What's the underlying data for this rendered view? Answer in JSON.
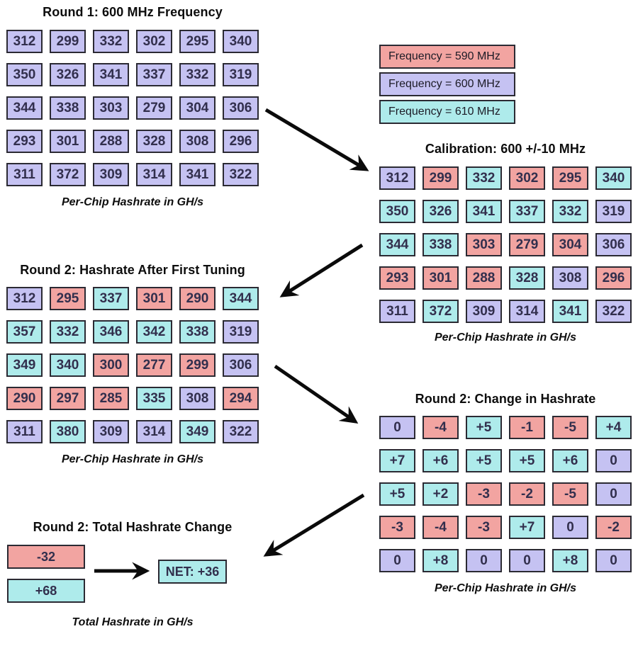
{
  "colors": {
    "background": "#ffffff",
    "cell_border": "#2b2a33",
    "cell_text": "#322f4d",
    "title_text": "#0d0d0d",
    "arrow": "#0b0b0b"
  },
  "frequency_colors": {
    "590": "#f2a4a1",
    "600": "#c5c2f2",
    "610": "#aeebeb"
  },
  "legend": {
    "items": [
      {
        "label": "Frequency = 590 MHz",
        "color_key": "590"
      },
      {
        "label": "Frequency = 600 MHz",
        "color_key": "600"
      },
      {
        "label": "Frequency = 610 MHz",
        "color_key": "610"
      }
    ]
  },
  "sections": {
    "round1": {
      "title": "Round 1: 600 MHz Frequency",
      "caption": "Per-Chip Hashrate in GH/s"
    },
    "calibration": {
      "title": "Calibration: 600 +/-10 MHz",
      "caption": "Per-Chip Hashrate in GH/s"
    },
    "round2": {
      "title": "Round 2: Hashrate After First Tuning",
      "caption": "Per-Chip Hashrate in GH/s"
    },
    "change": {
      "title": "Round 2: Change in Hashrate",
      "caption": "Per-Chip Hashrate in GH/s"
    },
    "total": {
      "title": "Round 2: Total Hashrate Change",
      "caption": "Total Hashrate in GH/s",
      "loss_label": "-32",
      "gain_label": "+68",
      "net_label": "NET: +36"
    }
  },
  "grids": {
    "round1": {
      "values": [
        [
          "312",
          "299",
          "332",
          "302",
          "295",
          "340"
        ],
        [
          "350",
          "326",
          "341",
          "337",
          "332",
          "319"
        ],
        [
          "344",
          "338",
          "303",
          "279",
          "304",
          "306"
        ],
        [
          "293",
          "301",
          "288",
          "328",
          "308",
          "296"
        ],
        [
          "311",
          "372",
          "309",
          "314",
          "341",
          "322"
        ]
      ],
      "colors": [
        [
          "600",
          "600",
          "600",
          "600",
          "600",
          "600"
        ],
        [
          "600",
          "600",
          "600",
          "600",
          "600",
          "600"
        ],
        [
          "600",
          "600",
          "600",
          "600",
          "600",
          "600"
        ],
        [
          "600",
          "600",
          "600",
          "600",
          "600",
          "600"
        ],
        [
          "600",
          "600",
          "600",
          "600",
          "600",
          "600"
        ]
      ]
    },
    "calibration": {
      "values": [
        [
          "312",
          "299",
          "332",
          "302",
          "295",
          "340"
        ],
        [
          "350",
          "326",
          "341",
          "337",
          "332",
          "319"
        ],
        [
          "344",
          "338",
          "303",
          "279",
          "304",
          "306"
        ],
        [
          "293",
          "301",
          "288",
          "328",
          "308",
          "296"
        ],
        [
          "311",
          "372",
          "309",
          "314",
          "341",
          "322"
        ]
      ],
      "colors": [
        [
          "600",
          "590",
          "610",
          "590",
          "590",
          "610"
        ],
        [
          "610",
          "610",
          "610",
          "610",
          "610",
          "600"
        ],
        [
          "610",
          "610",
          "590",
          "590",
          "590",
          "600"
        ],
        [
          "590",
          "590",
          "590",
          "610",
          "600",
          "590"
        ],
        [
          "600",
          "610",
          "600",
          "600",
          "610",
          "600"
        ]
      ]
    },
    "round2": {
      "values": [
        [
          "312",
          "295",
          "337",
          "301",
          "290",
          "344"
        ],
        [
          "357",
          "332",
          "346",
          "342",
          "338",
          "319"
        ],
        [
          "349",
          "340",
          "300",
          "277",
          "299",
          "306"
        ],
        [
          "290",
          "297",
          "285",
          "335",
          "308",
          "294"
        ],
        [
          "311",
          "380",
          "309",
          "314",
          "349",
          "322"
        ]
      ],
      "colors": [
        [
          "600",
          "590",
          "610",
          "590",
          "590",
          "610"
        ],
        [
          "610",
          "610",
          "610",
          "610",
          "610",
          "600"
        ],
        [
          "610",
          "610",
          "590",
          "590",
          "590",
          "600"
        ],
        [
          "590",
          "590",
          "590",
          "610",
          "600",
          "590"
        ],
        [
          "600",
          "610",
          "600",
          "600",
          "610",
          "600"
        ]
      ]
    },
    "change": {
      "values": [
        [
          "0",
          "-4",
          "+5",
          "-1",
          "-5",
          "+4"
        ],
        [
          "+7",
          "+6",
          "+5",
          "+5",
          "+6",
          "0"
        ],
        [
          "+5",
          "+2",
          "-3",
          "-2",
          "-5",
          "0"
        ],
        [
          "-3",
          "-4",
          "-3",
          "+7",
          "0",
          "-2"
        ],
        [
          "0",
          "+8",
          "0",
          "0",
          "+8",
          "0"
        ]
      ],
      "colors": [
        [
          "600",
          "590",
          "610",
          "590",
          "590",
          "610"
        ],
        [
          "610",
          "610",
          "610",
          "610",
          "610",
          "600"
        ],
        [
          "610",
          "610",
          "590",
          "590",
          "590",
          "600"
        ],
        [
          "590",
          "590",
          "590",
          "610",
          "600",
          "590"
        ],
        [
          "600",
          "610",
          "600",
          "600",
          "610",
          "600"
        ]
      ]
    }
  }
}
